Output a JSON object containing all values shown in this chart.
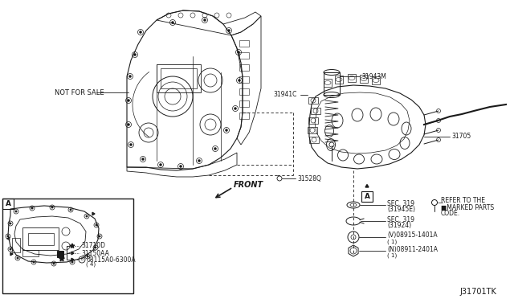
{
  "bg_color": "#ffffff",
  "line_color": "#1a1a1a",
  "diagram_code": "J31701TK",
  "labels": {
    "not_for_sale": "NOT FOR SALE",
    "front": "FRONT",
    "part_31943M": "31943M",
    "part_31941C": "31941C",
    "part_31705": "31705",
    "part_31528Q": "31528Q",
    "part_31710D": "31710D",
    "part_31150AA": "31150AA",
    "part_08115": "08115A0-6300A",
    "part_qty4": "( 4)",
    "part_SEC319_1": "SEC. 319",
    "part_SEC319_1b": "(31945E)",
    "part_SEC319_2": "SEC. 319",
    "part_SEC319_2b": "(31924)",
    "part_08915": "(V)08915-1401A",
    "part_08915_qty": "( 1)",
    "part_08911": "(N)08911-2401A",
    "part_08911_qty": "( 1)",
    "refer_line1": "REFER TO THE",
    "refer_line2": "■MARKED PARTS",
    "refer_line3": "CODE.",
    "box_A": "A"
  }
}
